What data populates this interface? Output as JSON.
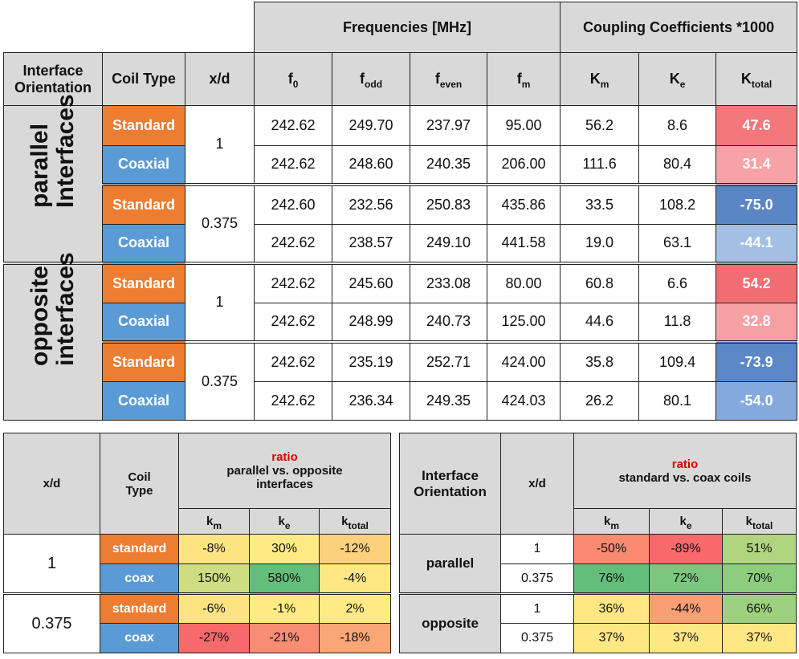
{
  "main": {
    "group_headers": {
      "frequencies": "Frequencies [MHz]",
      "coupling": "Coupling Coefficients *1000"
    },
    "col_headers": {
      "orientation": "Interface Orientation",
      "coil_type": "Coil Type",
      "xd": "x/d",
      "f0": "f",
      "f0_sub": "0",
      "fodd": "f",
      "fodd_sub": "odd",
      "feven": "f",
      "feven_sub": "even",
      "fm": "f",
      "fm_sub": "m",
      "km": "K",
      "km_sub": "m",
      "ke": "K",
      "ke_sub": "e",
      "ktotal": "K",
      "ktotal_sub": "total"
    },
    "sections": [
      {
        "orientation": "parallel Interfaces",
        "groups": [
          {
            "xd": "1",
            "rows": [
              {
                "coil": "Standard",
                "f0": "242.62",
                "fodd": "249.70",
                "feven": "237.97",
                "fm": "95.00",
                "km": "56.2",
                "ke": "8.6",
                "ktotal": "47.6",
                "color": "#f4777b"
              },
              {
                "coil": "Coaxial",
                "f0": "242.62",
                "fodd": "248.60",
                "feven": "240.35",
                "fm": "206.00",
                "km": "111.6",
                "ke": "80.4",
                "ktotal": "31.4",
                "color": "#f7a2a6"
              }
            ]
          },
          {
            "xd": "0.375",
            "rows": [
              {
                "coil": "Standard",
                "f0": "242.60",
                "fodd": "232.56",
                "feven": "250.83",
                "fm": "435.86",
                "km": "33.5",
                "ke": "108.2",
                "ktotal": "-75.0",
                "color": "#5a86c6"
              },
              {
                "coil": "Coaxial",
                "f0": "242.62",
                "fodd": "238.57",
                "feven": "249.10",
                "fm": "441.58",
                "km": "19.0",
                "ke": "63.1",
                "ktotal": "-44.1",
                "color": "#a4bfe4"
              }
            ]
          }
        ]
      },
      {
        "orientation": "opposite interfaces",
        "groups": [
          {
            "xd": "1",
            "rows": [
              {
                "coil": "Standard",
                "f0": "242.62",
                "fodd": "245.60",
                "feven": "233.08",
                "fm": "80.00",
                "km": "60.8",
                "ke": "6.6",
                "ktotal": "54.2",
                "color": "#f26d72"
              },
              {
                "coil": "Coaxial",
                "f0": "242.62",
                "fodd": "248.99",
                "feven": "240.73",
                "fm": "125.00",
                "km": "44.6",
                "ke": "11.8",
                "ktotal": "32.8",
                "color": "#f7a0a4"
              }
            ]
          },
          {
            "xd": "0.375",
            "rows": [
              {
                "coil": "Standard",
                "f0": "242.62",
                "fodd": "235.19",
                "feven": "252.71",
                "fm": "424.00",
                "km": "35.8",
                "ke": "109.4",
                "ktotal": "-73.9",
                "color": "#5b87c7"
              },
              {
                "coil": "Coaxial",
                "f0": "242.62",
                "fodd": "236.34",
                "feven": "249.35",
                "fm": "424.03",
                "km": "26.2",
                "ke": "80.1",
                "ktotal": "-54.0",
                "color": "#86a9db"
              }
            ]
          }
        ]
      }
    ]
  },
  "ratio_parallel_opposite": {
    "headers": {
      "xd": "x/d",
      "coil_type": "Coil Type",
      "ratio": "ratio",
      "subtitle": "parallel vs. opposite interfaces",
      "km": "k",
      "km_sub": "m",
      "ke": "k",
      "ke_sub": "e",
      "ktotal": "k",
      "ktotal_sub": "total"
    },
    "groups": [
      {
        "xd": "1",
        "rows": [
          {
            "coil": "standard",
            "km": "-8%",
            "km_c": "#fde480",
            "ke": "30%",
            "ke_c": "#ffea84",
            "kt": "-12%",
            "kt_c": "#fdd07e"
          },
          {
            "coil": "coax",
            "km": "150%",
            "km_c": "#cfdd82",
            "ke": "580%",
            "ke_c": "#63be7b",
            "kt": "-4%",
            "kt_c": "#ffe784"
          }
        ]
      },
      {
        "xd": "0.375",
        "rows": [
          {
            "coil": "standard",
            "km": "-6%",
            "km_c": "#fee382",
            "ke": "-1%",
            "ke_c": "#ffea84",
            "kt": "2%",
            "kt_c": "#ffea84"
          },
          {
            "coil": "coax",
            "km": "-27%",
            "km_c": "#f8696b",
            "ke": "-21%",
            "ke_c": "#f98d72",
            "kt": "-18%",
            "kt_c": "#fba676"
          }
        ]
      }
    ]
  },
  "ratio_standard_coax": {
    "headers": {
      "orientation": "Interface Orientation",
      "xd": "x/d",
      "ratio": "ratio",
      "subtitle": "standard vs. coax coils",
      "km": "k",
      "km_sub": "m",
      "ke": "k",
      "ke_sub": "e",
      "ktotal": "k",
      "ktotal_sub": "total"
    },
    "groups": [
      {
        "orientation": "parallel",
        "rows": [
          {
            "xd": "1",
            "km": "-50%",
            "km_c": "#f98a70",
            "ke": "-89%",
            "ke_c": "#f8696b",
            "kt": "51%",
            "kt_c": "#b0d57f"
          },
          {
            "xd": "0.375",
            "km": "76%",
            "km_c": "#63be7b",
            "ke": "72%",
            "ke_c": "#7ac77d",
            "kt": "70%",
            "kt_c": "#8ccd7e"
          }
        ]
      },
      {
        "orientation": "opposite",
        "rows": [
          {
            "xd": "1",
            "km": "36%",
            "km_c": "#ffe783",
            "ke": "-44%",
            "ke_c": "#fa9e74",
            "kt": "66%",
            "kt_c": "#9dd17f"
          },
          {
            "xd": "0.375",
            "km": "37%",
            "km_c": "#ffe884",
            "ke": "37%",
            "ke_c": "#ffe884",
            "kt": "37%",
            "kt_c": "#ffe884"
          }
        ]
      }
    ]
  }
}
